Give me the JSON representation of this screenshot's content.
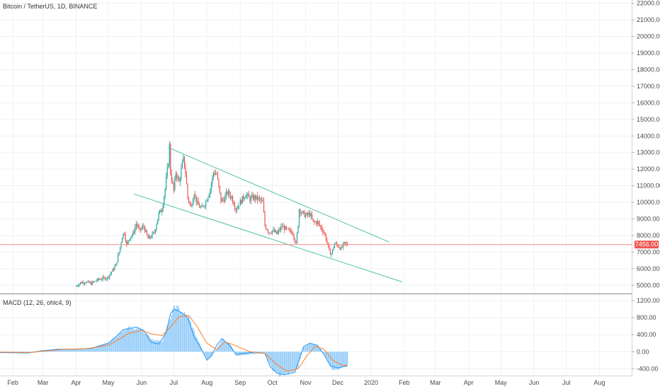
{
  "header": {
    "symbol_line": "Bitcoin / TetherUS, 1D, BINANCE"
  },
  "macd_header": {
    "label": "MACD (12, 26, ohlc4, 9)"
  },
  "colors": {
    "up": "#26a69a",
    "down": "#ef5350",
    "trendline": "#4fc3a1",
    "price_line": "#f28b82",
    "price_badge": "#ef5350",
    "macd_line": "#2196f3",
    "signal_line": "#ff7f27",
    "histogram": "#90caf9",
    "grid": "#eef1f5",
    "axis_text": "#4a4a4a"
  },
  "chart_data": [
    {
      "type": "candlestick",
      "title": "Bitcoin / TetherUS, 1D, BINANCE",
      "y_axis_position": "right",
      "ylim": [
        4500,
        22200
      ],
      "y_ticks": [
        5000,
        6000,
        7000,
        8000,
        9000,
        10000,
        11000,
        12000,
        13000,
        14000,
        15000,
        16000,
        17000,
        18000,
        19000,
        20000,
        21000,
        22000
      ],
      "y_tick_labels": [
        "5000.00",
        "6000.00",
        "7000.00",
        "8000.00",
        "9000.00",
        "10000.00",
        "11000.00",
        "12000.00",
        "13000.00",
        "14000.00",
        "15000.00",
        "16000.00",
        "17000.00",
        "18000.00",
        "19000.00",
        "20000.00",
        "21000.00",
        "22000.00"
      ],
      "x_start": "2019-01-20",
      "x_end": "2020-08-31",
      "x_ticks": [
        {
          "label": "Feb",
          "date": "2019-02-01"
        },
        {
          "label": "Mar",
          "date": "2019-03-01"
        },
        {
          "label": "Apr",
          "date": "2019-04-01"
        },
        {
          "label": "May",
          "date": "2019-05-01"
        },
        {
          "label": "Jun",
          "date": "2019-06-01"
        },
        {
          "label": "Jul",
          "date": "2019-07-01"
        },
        {
          "label": "Aug",
          "date": "2019-08-01"
        },
        {
          "label": "Sep",
          "date": "2019-09-01"
        },
        {
          "label": "Oct",
          "date": "2019-10-01"
        },
        {
          "label": "Nov",
          "date": "2019-11-01"
        },
        {
          "label": "Dec",
          "date": "2019-12-01"
        },
        {
          "label": "2020",
          "date": "2020-01-01"
        },
        {
          "label": "Feb",
          "date": "2020-02-01"
        },
        {
          "label": "Mar",
          "date": "2020-03-01"
        },
        {
          "label": "Apr",
          "date": "2020-04-01"
        },
        {
          "label": "May",
          "date": "2020-05-01"
        },
        {
          "label": "Jun",
          "date": "2020-06-01"
        },
        {
          "label": "Jul",
          "date": "2020-07-01"
        },
        {
          "label": "Aug",
          "date": "2020-08-01"
        }
      ],
      "close_path": [
        [
          "2019-04-01",
          4950
        ],
        [
          "2019-04-05",
          5150
        ],
        [
          "2019-04-10",
          5200
        ],
        [
          "2019-04-15",
          5100
        ],
        [
          "2019-04-20",
          5300
        ],
        [
          "2019-04-25",
          5400
        ],
        [
          "2019-04-30",
          5450
        ],
        [
          "2019-05-05",
          5900
        ],
        [
          "2019-05-08",
          6200
        ],
        [
          "2019-05-11",
          7000
        ],
        [
          "2019-05-14",
          7950
        ],
        [
          "2019-05-16",
          8200
        ],
        [
          "2019-05-18",
          7400
        ],
        [
          "2019-05-21",
          7900
        ],
        [
          "2019-05-24",
          8100
        ],
        [
          "2019-05-27",
          8700
        ],
        [
          "2019-05-30",
          8300
        ],
        [
          "2019-06-03",
          8550
        ],
        [
          "2019-06-07",
          7800
        ],
        [
          "2019-06-10",
          7950
        ],
        [
          "2019-06-13",
          8200
        ],
        [
          "2019-06-17",
          9300
        ],
        [
          "2019-06-20",
          9600
        ],
        [
          "2019-06-23",
          10800
        ],
        [
          "2019-06-26",
          12500
        ],
        [
          "2019-06-27",
          13400
        ],
        [
          "2019-06-28",
          11800
        ],
        [
          "2019-07-01",
          10700
        ],
        [
          "2019-07-03",
          11800
        ],
        [
          "2019-07-06",
          11200
        ],
        [
          "2019-07-09",
          12300
        ],
        [
          "2019-07-10",
          12600
        ],
        [
          "2019-07-12",
          11800
        ],
        [
          "2019-07-14",
          10300
        ],
        [
          "2019-07-17",
          9700
        ],
        [
          "2019-07-20",
          10600
        ],
        [
          "2019-07-23",
          9900
        ],
        [
          "2019-07-27",
          9600
        ],
        [
          "2019-07-31",
          10050
        ],
        [
          "2019-08-04",
          10800
        ],
        [
          "2019-08-07",
          11800
        ],
        [
          "2019-08-10",
          11700
        ],
        [
          "2019-08-14",
          10100
        ],
        [
          "2019-08-17",
          10200
        ],
        [
          "2019-08-20",
          10600
        ],
        [
          "2019-08-24",
          10300
        ],
        [
          "2019-08-28",
          9600
        ],
        [
          "2019-09-02",
          10100
        ],
        [
          "2019-09-06",
          10500
        ],
        [
          "2019-09-10",
          10200
        ],
        [
          "2019-09-14",
          10300
        ],
        [
          "2019-09-18",
          10200
        ],
        [
          "2019-09-22",
          10000
        ],
        [
          "2019-09-24",
          8600
        ],
        [
          "2019-09-28",
          8200
        ],
        [
          "2019-10-01",
          8300
        ],
        [
          "2019-10-05",
          8100
        ],
        [
          "2019-10-10",
          8550
        ],
        [
          "2019-10-15",
          8300
        ],
        [
          "2019-10-20",
          8200
        ],
        [
          "2019-10-23",
          7450
        ],
        [
          "2019-10-25",
          8700
        ],
        [
          "2019-10-26",
          9600
        ],
        [
          "2019-10-28",
          9400
        ],
        [
          "2019-11-01",
          9200
        ],
        [
          "2019-11-05",
          9300
        ],
        [
          "2019-11-08",
          8800
        ],
        [
          "2019-11-12",
          8800
        ],
        [
          "2019-11-15",
          8500
        ],
        [
          "2019-11-18",
          8200
        ],
        [
          "2019-11-21",
          7600
        ],
        [
          "2019-11-23",
          7000
        ],
        [
          "2019-11-25",
          6900
        ],
        [
          "2019-11-28",
          7500
        ],
        [
          "2019-12-01",
          7400
        ],
        [
          "2019-12-04",
          7200
        ],
        [
          "2019-12-07",
          7500
        ],
        [
          "2019-12-10",
          7456
        ]
      ],
      "trendlines": [
        {
          "name": "upper",
          "points": [
            [
              "2019-06-26",
              13300
            ],
            [
              "2020-01-18",
              7600
            ]
          ]
        },
        {
          "name": "lower",
          "points": [
            [
              "2019-05-25",
              10500
            ],
            [
              "2020-01-30",
              5200
            ]
          ]
        }
      ],
      "price_line": {
        "value": 7456,
        "label": "7456.00"
      }
    },
    {
      "type": "bar",
      "title": "MACD (12, 26, ohlc4, 9)",
      "ylim": [
        -560,
        1350
      ],
      "y_ticks": [
        -400,
        0,
        400,
        800,
        1200
      ],
      "y_tick_labels": [
        "-400.00",
        "0.00",
        "400.00",
        "800.00",
        "1200.00"
      ],
      "macd_path": [
        [
          "2019-01-20",
          -20
        ],
        [
          "2019-02-15",
          -30
        ],
        [
          "2019-03-01",
          20
        ],
        [
          "2019-03-15",
          60
        ],
        [
          "2019-04-01",
          60
        ],
        [
          "2019-04-15",
          80
        ],
        [
          "2019-05-01",
          200
        ],
        [
          "2019-05-08",
          350
        ],
        [
          "2019-05-15",
          520
        ],
        [
          "2019-05-20",
          540
        ],
        [
          "2019-05-27",
          580
        ],
        [
          "2019-06-03",
          500
        ],
        [
          "2019-06-10",
          220
        ],
        [
          "2019-06-17",
          180
        ],
        [
          "2019-06-24",
          450
        ],
        [
          "2019-06-28",
          900
        ],
        [
          "2019-07-02",
          1000
        ],
        [
          "2019-07-08",
          920
        ],
        [
          "2019-07-14",
          800
        ],
        [
          "2019-07-20",
          350
        ],
        [
          "2019-07-26",
          100
        ],
        [
          "2019-08-01",
          -200
        ],
        [
          "2019-08-05",
          -100
        ],
        [
          "2019-08-10",
          150
        ],
        [
          "2019-08-15",
          310
        ],
        [
          "2019-08-22",
          150
        ],
        [
          "2019-08-28",
          -60
        ],
        [
          "2019-09-04",
          -40
        ],
        [
          "2019-09-15",
          -10
        ],
        [
          "2019-09-24",
          -40
        ],
        [
          "2019-09-29",
          -350
        ],
        [
          "2019-10-05",
          -500
        ],
        [
          "2019-10-12",
          -540
        ],
        [
          "2019-10-22",
          -480
        ],
        [
          "2019-10-26",
          -180
        ],
        [
          "2019-10-30",
          120
        ],
        [
          "2019-11-05",
          200
        ],
        [
          "2019-11-12",
          150
        ],
        [
          "2019-11-18",
          -60
        ],
        [
          "2019-11-24",
          -330
        ],
        [
          "2019-12-01",
          -380
        ],
        [
          "2019-12-10",
          -330
        ]
      ],
      "signal_path": [
        [
          "2019-01-20",
          -10
        ],
        [
          "2019-02-15",
          -20
        ],
        [
          "2019-03-01",
          10
        ],
        [
          "2019-03-20",
          55
        ],
        [
          "2019-04-10",
          70
        ],
        [
          "2019-05-01",
          150
        ],
        [
          "2019-05-10",
          280
        ],
        [
          "2019-05-20",
          430
        ],
        [
          "2019-06-01",
          500
        ],
        [
          "2019-06-10",
          420
        ],
        [
          "2019-06-20",
          380
        ],
        [
          "2019-06-28",
          580
        ],
        [
          "2019-07-06",
          820
        ],
        [
          "2019-07-15",
          850
        ],
        [
          "2019-07-22",
          620
        ],
        [
          "2019-08-01",
          200
        ],
        [
          "2019-08-10",
          50
        ],
        [
          "2019-08-18",
          230
        ],
        [
          "2019-08-28",
          140
        ],
        [
          "2019-09-10",
          0
        ],
        [
          "2019-09-24",
          -40
        ],
        [
          "2019-10-05",
          -300
        ],
        [
          "2019-10-15",
          -460
        ],
        [
          "2019-10-25",
          -400
        ],
        [
          "2019-11-02",
          -100
        ],
        [
          "2019-11-10",
          130
        ],
        [
          "2019-11-18",
          60
        ],
        [
          "2019-11-26",
          -200
        ],
        [
          "2019-12-05",
          -320
        ],
        [
          "2019-12-10",
          -320
        ]
      ],
      "histogram_path": [
        [
          "2019-01-20",
          -30
        ],
        [
          "2019-02-15",
          -20
        ],
        [
          "2019-03-01",
          40
        ],
        [
          "2019-03-20",
          55
        ],
        [
          "2019-04-10",
          60
        ],
        [
          "2019-05-01",
          200
        ],
        [
          "2019-05-10",
          400
        ],
        [
          "2019-05-20",
          560
        ],
        [
          "2019-06-01",
          530
        ],
        [
          "2019-06-10",
          300
        ],
        [
          "2019-06-20",
          240
        ],
        [
          "2019-06-28",
          800
        ],
        [
          "2019-07-02",
          1080
        ],
        [
          "2019-07-08",
          950
        ],
        [
          "2019-07-15",
          800
        ],
        [
          "2019-07-22",
          350
        ],
        [
          "2019-08-01",
          -180
        ],
        [
          "2019-08-05",
          -120
        ],
        [
          "2019-08-12",
          150
        ],
        [
          "2019-08-15",
          300
        ],
        [
          "2019-08-24",
          140
        ],
        [
          "2019-08-28",
          -100
        ],
        [
          "2019-09-10",
          -60
        ],
        [
          "2019-09-24",
          -40
        ],
        [
          "2019-10-01",
          -420
        ],
        [
          "2019-10-08",
          -560
        ],
        [
          "2019-10-18",
          -500
        ],
        [
          "2019-10-25",
          -350
        ],
        [
          "2019-10-30",
          100
        ],
        [
          "2019-11-06",
          200
        ],
        [
          "2019-11-12",
          150
        ],
        [
          "2019-11-18",
          -50
        ],
        [
          "2019-11-26",
          -420
        ],
        [
          "2019-12-01",
          -400
        ],
        [
          "2019-12-10",
          -330
        ]
      ]
    }
  ]
}
